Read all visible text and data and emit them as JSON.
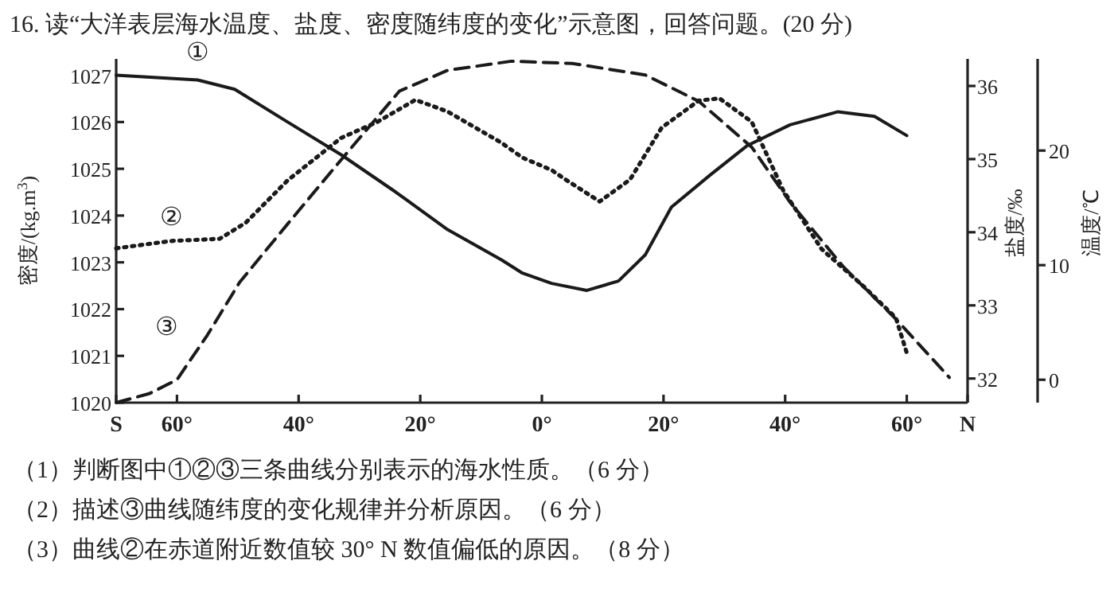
{
  "chart_data": {
    "type": "line",
    "title": "16. 读“大洋表层海水温度、盐度、密度随纬度的变化”示意图，回答问题。(20 分)",
    "ylabel": "密度/(kg.m$^{3}$)",
    "y2label": "盐度/‰",
    "y3label": "温度/℃",
    "xlim": [
      -70,
      70
    ],
    "xticks": [
      {
        "value": -70,
        "label": "S"
      },
      {
        "value": -60,
        "label": "60°"
      },
      {
        "value": -40,
        "label": "40°"
      },
      {
        "value": -20,
        "label": "20°"
      },
      {
        "value": 0,
        "label": "0°"
      },
      {
        "value": 20,
        "label": "20°"
      },
      {
        "value": 40,
        "label": "40°"
      },
      {
        "value": 60,
        "label": "60°"
      },
      {
        "value": 70,
        "label": "N"
      }
    ],
    "ylim": [
      1020,
      1027.35
    ],
    "yticks": [
      1020,
      1021,
      1022,
      1023,
      1024,
      1025,
      1026,
      1027
    ],
    "y2lim": [
      31.67,
      36.37
    ],
    "y2ticks": [
      32,
      33,
      34,
      35,
      36
    ],
    "y3lim": [
      -2,
      28
    ],
    "y3ticks": [
      0,
      10,
      20
    ],
    "grid": false,
    "series": [
      {
        "name": "①",
        "color": "#1a1a1a",
        "line_style": "solid",
        "axis": "y",
        "x": [
          -70,
          -56.6,
          -50.5,
          -41.8,
          -33,
          -24,
          -15.5,
          -6.6,
          -3.2,
          1.6,
          7.4,
          12.6,
          17,
          21.3,
          27.6,
          33.7,
          40.8,
          48.7,
          54.7,
          60
        ],
        "values": [
          1027.0,
          1026.9,
          1026.7,
          1026.0,
          1025.3,
          1024.5,
          1023.7,
          1023.05,
          1022.77,
          1022.55,
          1022.4,
          1022.6,
          1023.16,
          1024.18,
          1024.86,
          1025.49,
          1025.94,
          1026.22,
          1026.12,
          1025.71
        ]
      },
      {
        "name": "②",
        "color": "#1a1a1a",
        "line_style": "dotted",
        "axis": "y2",
        "x": [
          -70,
          -61,
          -53,
          -48.7,
          -41.8,
          -33,
          -27,
          -20.8,
          -15.5,
          -6.6,
          -3.2,
          1.6,
          3.9,
          9.5,
          14.5,
          19.7,
          25.8,
          29.2,
          34.5,
          39.7,
          46,
          52.9,
          58.2,
          60
        ],
        "values": [
          33.78,
          33.88,
          33.91,
          34.13,
          34.71,
          35.29,
          35.51,
          35.81,
          35.65,
          35.22,
          35.02,
          34.85,
          34.72,
          34.42,
          34.72,
          35.43,
          35.8,
          35.83,
          35.51,
          34.57,
          33.77,
          33.26,
          32.83,
          32.35
        ]
      },
      {
        "name": "③",
        "color": "#1a1a1a",
        "line_style": "dashed",
        "axis": "y3",
        "x": [
          -70,
          -64.5,
          -60,
          -55,
          -49.7,
          -41.8,
          -33,
          -23.4,
          -15.5,
          -5,
          5,
          17,
          25.8,
          34.5,
          40.8,
          49.5,
          58.2,
          67
        ],
        "values": [
          -2,
          -1.2,
          0,
          3.9,
          8.5,
          13.6,
          19.2,
          25.2,
          27,
          27.8,
          27.6,
          26.6,
          24.3,
          20.3,
          15.5,
          9.9,
          5.3,
          0.2
        ]
      }
    ],
    "annotations": [
      "（1）判断图中①②③三条曲线分别表示的海水性质。（6 分）",
      "（2）描述③曲线随纬度的变化规律并分析原因。（6 分）",
      "（3）曲线②在赤道附近数值较 30° N 数值偏低的原因。（8 分）"
    ]
  }
}
